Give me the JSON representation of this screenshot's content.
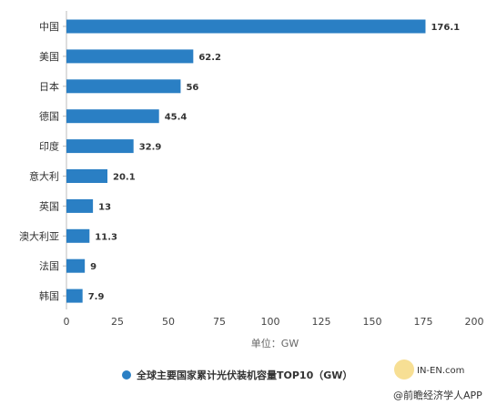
{
  "chart_data": {
    "type": "bar",
    "orientation": "horizontal",
    "categories": [
      "中国",
      "美国",
      "日本",
      "德国",
      "印度",
      "意大利",
      "英国",
      "澳大利亚",
      "法国",
      "韩国"
    ],
    "series": [
      {
        "name": "全球主要国家累计光伏装机容量TOP10（GW）",
        "values": [
          176.1,
          62.2,
          56,
          45.4,
          32.9,
          20.1,
          13,
          11.3,
          9,
          7.9
        ],
        "color": "#2a7fc4"
      }
    ],
    "data_labels": [
      "176.1",
      "62.2",
      "56",
      "45.4",
      "32.9",
      "20.1",
      "13",
      "11.3",
      "9",
      "7.9"
    ],
    "xlim": [
      0,
      200
    ],
    "xticks": [
      0,
      25,
      50,
      75,
      100,
      125,
      150,
      175,
      200
    ],
    "xlabel": "单位：GW",
    "legend_position": "bottom",
    "grid": false
  },
  "watermark": {
    "site": "IN-EN.com",
    "source": "@前瞻经济学人APP"
  }
}
